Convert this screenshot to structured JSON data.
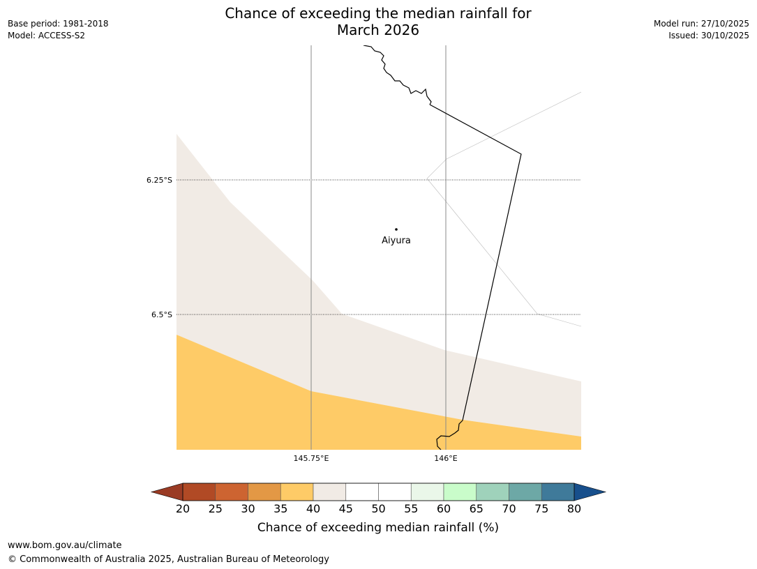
{
  "header": {
    "title_line1": "Chance of exceeding the median rainfall for",
    "title_line2": "March 2026",
    "base_period": "Base period: 1981-2018",
    "model": "Model: ACCESS-S2",
    "model_run": "Model run: 27/10/2025",
    "issued": "Issued: 30/10/2025"
  },
  "map": {
    "lat_labels": [
      "6.25°S",
      "6.5°S"
    ],
    "lon_labels": [
      "145.75°E",
      "146°E"
    ],
    "place": {
      "name": "Aiyura"
    },
    "colors": {
      "band_35_40": "#fecb67",
      "band_40_45": "#f1ebe5",
      "border": "#000000",
      "grid": "#888888"
    }
  },
  "colorbar": {
    "title": "Chance of exceeding median rainfall (%)",
    "ticks": [
      "20",
      "25",
      "30",
      "35",
      "40",
      "45",
      "50",
      "55",
      "60",
      "65",
      "70",
      "75",
      "80"
    ],
    "low_extend_color": "#9a3b24",
    "high_extend_color": "#174f8c",
    "colors": [
      "#b14a25",
      "#cd6431",
      "#e39845",
      "#fecb67",
      "#f1ebe5",
      "#ffffff",
      "#ffffff",
      "#eaf7e9",
      "#c9fcca",
      "#9fd2bb",
      "#6da8a6",
      "#3f7a9a"
    ]
  },
  "footer": {
    "url": "www.bom.gov.au/climate",
    "copyright": "© Commonwealth of Australia 2025, Australian Bureau of Meteorology"
  }
}
